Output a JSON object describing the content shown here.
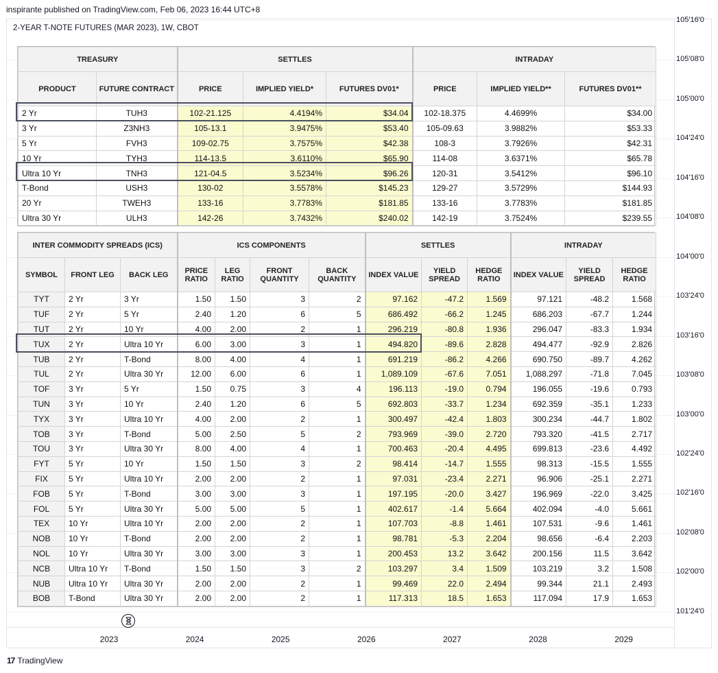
{
  "publisher_line": "inspirante published on TradingView.com, Feb 06, 2023 16:44 UTC+8",
  "chart_title": "2-YEAR T-NOTE FUTURES (MAR 2023), 1W, CBOT",
  "footer_logo_text": "TradingView",
  "footer_logo_mark": "17",
  "colors": {
    "highlight_fill": "#fbfbd0",
    "header_fill": "#f2f2f2",
    "box_outline": "#4a4f5c"
  },
  "icons": {
    "hourglass": "hourglass-icon"
  },
  "chart_data": {
    "type": "table",
    "y_axis_labels": [
      "105'16'0",
      "105'08'0",
      "105'00'0",
      "104'24'0",
      "104'16'0",
      "104'08'0",
      "104'00'0",
      "103'24'0",
      "103'16'0",
      "103'08'0",
      "103'00'0",
      "102'24'0",
      "102'16'0",
      "102'08'0",
      "102'00'0",
      "101'24'0"
    ],
    "x_axis_labels": [
      "2023",
      "2024",
      "2025",
      "2026",
      "2027",
      "2028",
      "2029"
    ],
    "treasury_table": {
      "group_headers": [
        "TREASURY",
        "SETTLES",
        "INTRADAY"
      ],
      "columns": [
        "PRODUCT",
        "FUTURE CONTRACT",
        "PRICE",
        "IMPLIED YIELD*",
        "FUTURES DV01*",
        "PRICE",
        "IMPLIED YIELD**",
        "FUTURES DV01**"
      ],
      "rows": [
        [
          "2 Yr",
          "TUH3",
          "102-21.125",
          "4.4194%",
          "$34.04",
          "102-18.375",
          "4.4699%",
          "$34.00"
        ],
        [
          "3 Yr",
          "Z3NH3",
          "105-13.1",
          "3.9475%",
          "$53.40",
          "105-09.63",
          "3.9882%",
          "$53.33"
        ],
        [
          "5 Yr",
          "FVH3",
          "109-02.75",
          "3.7575%",
          "$42.38",
          "108-3",
          "3.7926%",
          "$42.31"
        ],
        [
          "10 Yr",
          "TYH3",
          "114-13.5",
          "3.6110%",
          "$65.90",
          "114-08",
          "3.6371%",
          "$65.78"
        ],
        [
          "Ultra 10 Yr",
          "TNH3",
          "121-04.5",
          "3.5234%",
          "$96.26",
          "120-31",
          "3.5412%",
          "$96.10"
        ],
        [
          "T-Bond",
          "USH3",
          "130-02",
          "3.5578%",
          "$145.23",
          "129-27",
          "3.5729%",
          "$144.93"
        ],
        [
          "20 Yr",
          "TWEH3",
          "133-16",
          "3.7783%",
          "$181.85",
          "133-16",
          "3.7783%",
          "$181.85"
        ],
        [
          "Ultra 30 Yr",
          "ULH3",
          "142-26",
          "3.7432%",
          "$240.02",
          "142-19",
          "3.7524%",
          "$239.55"
        ]
      ]
    },
    "ics_table": {
      "group_headers": [
        "INTER COMMODITY SPREADS (ICS)",
        "ICS COMPONENTS",
        "SETTLES",
        "INTRADAY"
      ],
      "columns": [
        "SYMBOL",
        "FRONT LEG",
        "BACK LEG",
        "PRICE RATIO",
        "LEG RATIO",
        "FRONT QUANTITY",
        "BACK QUANTITY",
        "INDEX VALUE",
        "YIELD SPREAD",
        "HEDGE RATIO",
        "INDEX VALUE",
        "YIELD SPREAD",
        "HEDGE RATIO"
      ],
      "rows": [
        [
          "TYT",
          "2 Yr",
          "3 Yr",
          "1.50",
          "1.50",
          "3",
          "2",
          "97.162",
          "-47.2",
          "1.569",
          "97.121",
          "-48.2",
          "1.568"
        ],
        [
          "TUF",
          "2 Yr",
          "5 Yr",
          "2.40",
          "1.20",
          "6",
          "5",
          "686.492",
          "-66.2",
          "1.245",
          "686.203",
          "-67.7",
          "1.244"
        ],
        [
          "TUT",
          "2 Yr",
          "10 Yr",
          "4.00",
          "2.00",
          "2",
          "1",
          "296.219",
          "-80.8",
          "1.936",
          "296.047",
          "-83.3",
          "1.934"
        ],
        [
          "TUX",
          "2 Yr",
          "Ultra 10 Yr",
          "6.00",
          "3.00",
          "3",
          "1",
          "494.820",
          "-89.6",
          "2.828",
          "494.477",
          "-92.9",
          "2.826"
        ],
        [
          "TUB",
          "2 Yr",
          "T-Bond",
          "8.00",
          "4.00",
          "4",
          "1",
          "691.219",
          "-86.2",
          "4.266",
          "690.750",
          "-89.7",
          "4.262"
        ],
        [
          "TUL",
          "2 Yr",
          "Ultra 30 Yr",
          "12.00",
          "6.00",
          "6",
          "1",
          "1,089.109",
          "-67.6",
          "7.051",
          "1,088.297",
          "-71.8",
          "7.045"
        ],
        [
          "TOF",
          "3 Yr",
          "5 Yr",
          "1.50",
          "0.75",
          "3",
          "4",
          "196.113",
          "-19.0",
          "0.794",
          "196.055",
          "-19.6",
          "0.793"
        ],
        [
          "TUN",
          "3 Yr",
          "10 Yr",
          "2.40",
          "1.20",
          "6",
          "5",
          "692.803",
          "-33.7",
          "1.234",
          "692.359",
          "-35.1",
          "1.233"
        ],
        [
          "TYX",
          "3 Yr",
          "Ultra 10 Yr",
          "4.00",
          "2.00",
          "2",
          "1",
          "300.497",
          "-42.4",
          "1.803",
          "300.234",
          "-44.7",
          "1.802"
        ],
        [
          "TOB",
          "3 Yr",
          "T-Bond",
          "5.00",
          "2.50",
          "5",
          "2",
          "793.969",
          "-39.0",
          "2.720",
          "793.320",
          "-41.5",
          "2.717"
        ],
        [
          "TOU",
          "3 Yr",
          "Ultra 30 Yr",
          "8.00",
          "4.00",
          "4",
          "1",
          "700.463",
          "-20.4",
          "4.495",
          "699.813",
          "-23.6",
          "4.492"
        ],
        [
          "FYT",
          "5 Yr",
          "10 Yr",
          "1.50",
          "1.50",
          "3",
          "2",
          "98.414",
          "-14.7",
          "1.555",
          "98.313",
          "-15.5",
          "1.555"
        ],
        [
          "FIX",
          "5 Yr",
          "Ultra 10 Yr",
          "2.00",
          "2.00",
          "2",
          "1",
          "97.031",
          "-23.4",
          "2.271",
          "96.906",
          "-25.1",
          "2.271"
        ],
        [
          "FOB",
          "5 Yr",
          "T-Bond",
          "3.00",
          "3.00",
          "3",
          "1",
          "197.195",
          "-20.0",
          "3.427",
          "196.969",
          "-22.0",
          "3.425"
        ],
        [
          "FOL",
          "5 Yr",
          "Ultra 30 Yr",
          "5.00",
          "5.00",
          "5",
          "1",
          "402.617",
          "-1.4",
          "5.664",
          "402.094",
          "-4.0",
          "5.661"
        ],
        [
          "TEX",
          "10 Yr",
          "Ultra 10 Yr",
          "2.00",
          "2.00",
          "2",
          "1",
          "107.703",
          "-8.8",
          "1.461",
          "107.531",
          "-9.6",
          "1.461"
        ],
        [
          "NOB",
          "10 Yr",
          "T-Bond",
          "2.00",
          "2.00",
          "2",
          "1",
          "98.781",
          "-5.3",
          "2.204",
          "98.656",
          "-6.4",
          "2.203"
        ],
        [
          "NOL",
          "10 Yr",
          "Ultra 30 Yr",
          "3.00",
          "3.00",
          "3",
          "1",
          "200.453",
          "13.2",
          "3.642",
          "200.156",
          "11.5",
          "3.642"
        ],
        [
          "NCB",
          "Ultra 10 Yr",
          "T-Bond",
          "1.50",
          "1.50",
          "3",
          "2",
          "103.297",
          "3.4",
          "1.509",
          "103.219",
          "3.2",
          "1.508"
        ],
        [
          "NUB",
          "Ultra 10 Yr",
          "Ultra 30 Yr",
          "2.00",
          "2.00",
          "2",
          "1",
          "99.469",
          "22.0",
          "2.494",
          "99.344",
          "21.1",
          "2.493"
        ],
        [
          "BOB",
          "T-Bond",
          "Ultra 30 Yr",
          "2.00",
          "2.00",
          "2",
          "1",
          "117.313",
          "18.5",
          "1.653",
          "117.094",
          "17.9",
          "1.653"
        ]
      ]
    }
  }
}
